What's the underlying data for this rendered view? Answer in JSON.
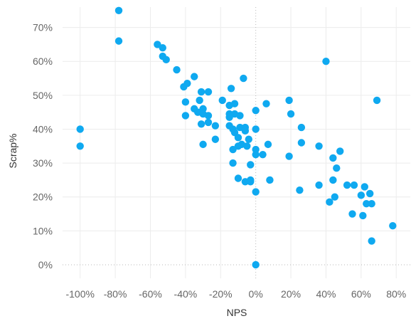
{
  "chart_data": {
    "type": "scatter",
    "xlabel": "NPS",
    "ylabel": "Scrap%",
    "xlim": [
      -110,
      88
    ],
    "ylim": [
      -4,
      76
    ],
    "x_ticks": [
      -100,
      -80,
      -60,
      -40,
      -20,
      0,
      20,
      40,
      60,
      80
    ],
    "x_tick_labels": [
      "-100%",
      "-80%",
      "-60%",
      "-40%",
      "-20%",
      "0%",
      "20%",
      "40%",
      "60%",
      "80%"
    ],
    "y_ticks": [
      0,
      10,
      20,
      30,
      40,
      50,
      60,
      70
    ],
    "y_tick_labels": [
      "0%",
      "10%",
      "20%",
      "30%",
      "40%",
      "50%",
      "60%",
      "70%"
    ],
    "grid": true,
    "zero_lines": "dotted",
    "marker_color": "#0fa9f0",
    "points": [
      [
        -100,
        40
      ],
      [
        -100,
        35
      ],
      [
        -78,
        75
      ],
      [
        -78,
        66
      ],
      [
        -56,
        65
      ],
      [
        -53,
        64
      ],
      [
        -53,
        61.5
      ],
      [
        -51,
        60.5
      ],
      [
        -45,
        57.5
      ],
      [
        -41,
        52.5
      ],
      [
        -39,
        53.5
      ],
      [
        -35,
        55.5
      ],
      [
        -40,
        48
      ],
      [
        -40,
        44
      ],
      [
        -31,
        51
      ],
      [
        -27,
        51
      ],
      [
        -32,
        48.5
      ],
      [
        -35,
        46
      ],
      [
        -33,
        45
      ],
      [
        -30,
        46
      ],
      [
        -30,
        44.5
      ],
      [
        -27,
        44
      ],
      [
        -27,
        42
      ],
      [
        -31,
        41.5
      ],
      [
        -23,
        41
      ],
      [
        -19,
        48.5
      ],
      [
        -15,
        47
      ],
      [
        -14,
        52
      ],
      [
        -15,
        44.5
      ],
      [
        -12,
        47.5
      ],
      [
        -12,
        44.5
      ],
      [
        -9,
        44
      ],
      [
        -7,
        55
      ],
      [
        -15,
        43.5
      ],
      [
        -15,
        41
      ],
      [
        -13,
        40
      ],
      [
        -12,
        39
      ],
      [
        -9,
        40.5
      ],
      [
        -6,
        40.5
      ],
      [
        -6,
        39.5
      ],
      [
        -10,
        37.5
      ],
      [
        -4,
        37
      ],
      [
        -8,
        35.5
      ],
      [
        -10,
        35
      ],
      [
        -5,
        35
      ],
      [
        -13,
        34
      ],
      [
        -23,
        37
      ],
      [
        -30,
        35.5
      ],
      [
        -13,
        30
      ],
      [
        -10,
        25.5
      ],
      [
        -6,
        24.5
      ],
      [
        -3,
        25
      ],
      [
        -3,
        24.5
      ],
      [
        -3,
        29.5
      ],
      [
        0,
        45.5
      ],
      [
        6,
        47.5
      ],
      [
        0,
        40
      ],
      [
        0,
        34
      ],
      [
        0,
        32.5
      ],
      [
        4,
        32.5
      ],
      [
        7,
        35.5
      ],
      [
        8,
        25
      ],
      [
        0,
        21.5
      ],
      [
        0,
        0
      ],
      [
        19,
        48.5
      ],
      [
        20,
        44.5
      ],
      [
        26,
        40.5
      ],
      [
        26,
        36
      ],
      [
        19,
        32
      ],
      [
        25,
        22
      ],
      [
        36,
        35
      ],
      [
        36,
        23.5
      ],
      [
        40,
        60
      ],
      [
        44,
        31.5
      ],
      [
        46,
        28.5
      ],
      [
        48,
        33.5
      ],
      [
        44,
        25
      ],
      [
        45,
        20
      ],
      [
        42,
        18.5
      ],
      [
        52,
        23.5
      ],
      [
        56,
        23.5
      ],
      [
        62,
        23
      ],
      [
        60,
        20.5
      ],
      [
        65,
        21
      ],
      [
        63,
        18
      ],
      [
        66,
        18
      ],
      [
        55,
        15
      ],
      [
        61,
        14.5
      ],
      [
        69,
        48.5
      ],
      [
        66,
        7
      ],
      [
        78,
        11.5
      ]
    ]
  }
}
